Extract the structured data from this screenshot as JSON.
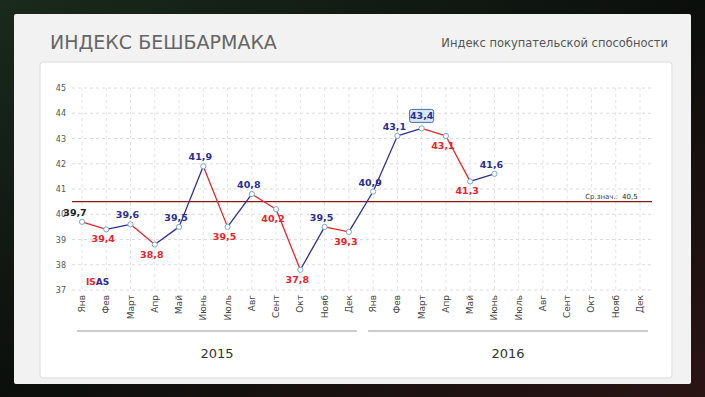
{
  "chart_data": {
    "type": "line",
    "title": "ИНДЕКС БЕШБАРМАКА",
    "subtitle": "Индекс покупательской способности",
    "logo": "ISAS",
    "categories": [
      "Янв",
      "Фев",
      "Март",
      "Апр",
      "Май",
      "Июнь",
      "Июль",
      "Авг",
      "Сент",
      "Окт",
      "Нояб",
      "Дек",
      "Янв",
      "Фев",
      "Март",
      "Апр",
      "Май",
      "Июнь",
      "Июль",
      "Авг",
      "Сент",
      "Окт",
      "Нояб",
      "Дек"
    ],
    "year_labels": [
      "2015",
      "2016"
    ],
    "values": [
      39.7,
      39.4,
      39.6,
      38.8,
      39.5,
      41.9,
      39.5,
      40.8,
      40.2,
      37.8,
      39.5,
      39.3,
      40.9,
      43.1,
      43.4,
      43.1,
      41.3,
      41.6,
      null,
      null,
      null,
      null,
      null,
      null
    ],
    "value_labels": [
      "39,7",
      "39,4",
      "39,6",
      "38,8",
      "39,5",
      "41,9",
      "39,5",
      "40,8",
      "40,2",
      "37,8",
      "39,5",
      "39,3",
      "40,9",
      "43,1",
      "43,4",
      "43,1",
      "41,3",
      "41,6",
      null,
      null,
      null,
      null,
      null,
      null
    ],
    "colors": [
      "#222222",
      "#e8242a",
      "#2d2f8f",
      "#e8242a",
      "#2d2f8f",
      "#2d2f8f",
      "#e8242a",
      "#2d2f8f",
      "#e8242a",
      "#e8242a",
      "#2d2f8f",
      "#e8242a",
      "#2d2f8f",
      "#2d2f8f",
      "#2d2f8f",
      "#e8242a",
      "#e8242a",
      "#2d2f8f",
      null,
      null,
      null,
      null,
      null,
      null
    ],
    "ylim": [
      37,
      45
    ],
    "yticks": [
      37,
      38,
      39,
      40,
      41,
      42,
      43,
      44,
      45
    ],
    "grid": true,
    "data_labels": true,
    "marker": "circle",
    "reference_line": {
      "value": 40.5,
      "label": "Ср.знач.:",
      "value_label": "40,5"
    }
  }
}
